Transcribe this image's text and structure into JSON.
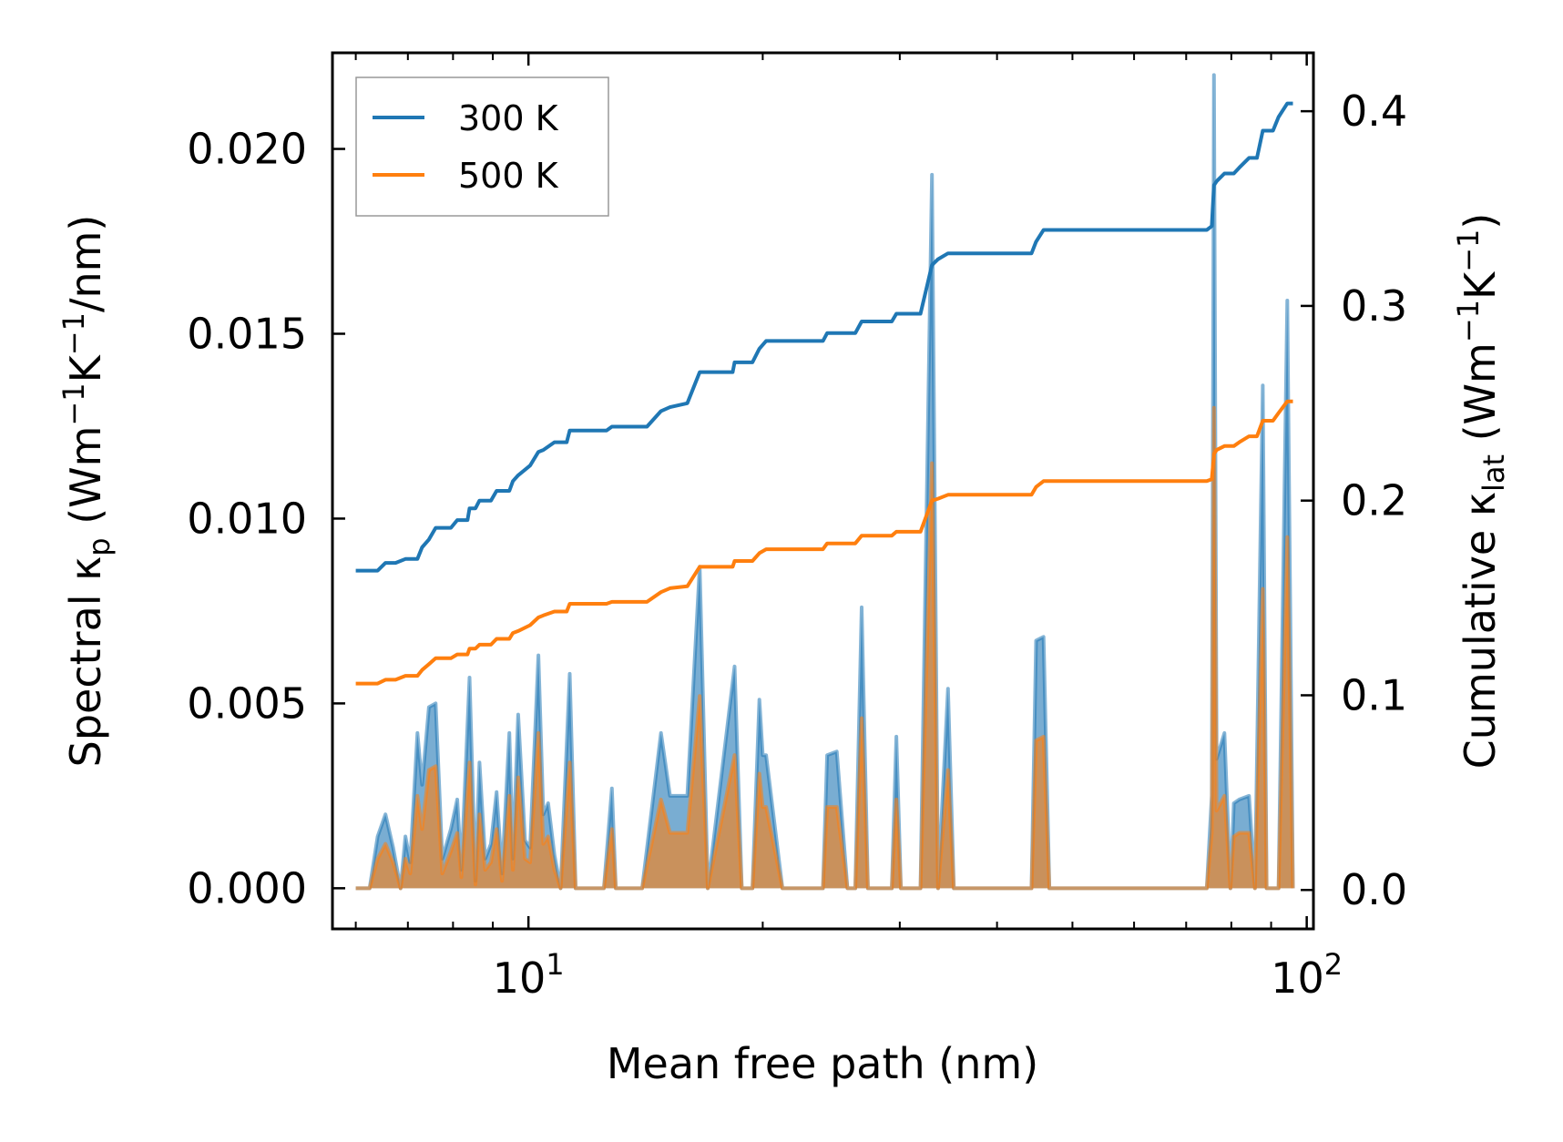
{
  "chart_data": {
    "type": "line",
    "x_scale": "log",
    "xlabel": "Mean free path (nm)",
    "ylabel_left": {
      "prefix": "Spectral κ",
      "sub": "p",
      "unit_open": " (Wm",
      "sup1": "−1",
      "mid": "K",
      "sup2": "−1",
      "tail": "/nm)"
    },
    "ylabel_right": {
      "prefix": "Cumulative κ",
      "sub": "lat",
      "unit_open": " (Wm",
      "sup1": "−1",
      "mid": "K",
      "sup2": "−1",
      "tail": ")"
    },
    "xlim": [
      5.6,
      102
    ],
    "ylim_left": [
      -0.0011,
      0.0226
    ],
    "ylim_right": [
      -0.02,
      0.43
    ],
    "x_ticks": [
      {
        "base": "10",
        "exp": "1",
        "value": 10
      },
      {
        "base": "10",
        "exp": "2",
        "value": 100
      }
    ],
    "y_left_ticks": [
      "0.000",
      "0.005",
      "0.010",
      "0.015",
      "0.020"
    ],
    "y_left_tick_values": [
      0,
      0.005,
      0.01,
      0.015,
      0.02
    ],
    "y_right_ticks": [
      "0.0",
      "0.1",
      "0.2",
      "0.3",
      "0.4"
    ],
    "y_right_tick_values": [
      0,
      0.1,
      0.2,
      0.3,
      0.4
    ],
    "legend": {
      "placement": "top-left",
      "entries": [
        {
          "label": "300 K",
          "color": "#1f77b4"
        },
        {
          "label": "500 K",
          "color": "#ff7f0e"
        }
      ]
    },
    "spectral_series": [
      {
        "name": "300 K",
        "color": "#1f77b4",
        "points": [
          [
            6.0,
            0
          ],
          [
            6.25,
            0
          ],
          [
            6.4,
            0.0014
          ],
          [
            6.55,
            0.002
          ],
          [
            6.7,
            0.0011
          ],
          [
            6.85,
            0
          ],
          [
            6.95,
            0.0014
          ],
          [
            7.05,
            0.0007
          ],
          [
            7.2,
            0.0042
          ],
          [
            7.3,
            0.0028
          ],
          [
            7.45,
            0.0049
          ],
          [
            7.6,
            0.005
          ],
          [
            7.75,
            0.0008
          ],
          [
            7.95,
            0.0016
          ],
          [
            8.1,
            0.0024
          ],
          [
            8.2,
            0.0005
          ],
          [
            8.4,
            0.0057
          ],
          [
            8.55,
            0.0002
          ],
          [
            8.65,
            0.0034
          ],
          [
            8.8,
            0.0008
          ],
          [
            8.95,
            0.0012
          ],
          [
            9.1,
            0.0026
          ],
          [
            9.25,
            0.0004
          ],
          [
            9.45,
            0.0042
          ],
          [
            9.55,
            0.0008
          ],
          [
            9.7,
            0.0047
          ],
          [
            9.9,
            0.0013
          ],
          [
            10.05,
            0.0011
          ],
          [
            10.3,
            0.0063
          ],
          [
            10.45,
            0.002
          ],
          [
            10.6,
            0.0023
          ],
          [
            10.8,
            0.0009
          ],
          [
            11.0,
            0
          ],
          [
            11.3,
            0.0058
          ],
          [
            11.5,
            0
          ],
          [
            12.5,
            0
          ],
          [
            12.8,
            0.0027
          ],
          [
            12.95,
            0
          ],
          [
            14.0,
            0
          ],
          [
            14.8,
            0.0042
          ],
          [
            15.2,
            0.0025
          ],
          [
            16.0,
            0.0025
          ],
          [
            16.6,
            0.0087
          ],
          [
            17.0,
            0
          ],
          [
            18.4,
            0.006
          ],
          [
            18.8,
            0
          ],
          [
            19.4,
            0
          ],
          [
            19.8,
            0.0051
          ],
          [
            20.0,
            0.0036
          ],
          [
            20.2,
            0.0036
          ],
          [
            21.2,
            0
          ],
          [
            23.9,
            0
          ],
          [
            24.2,
            0.0036
          ],
          [
            24.9,
            0.0037
          ],
          [
            25.7,
            0
          ],
          [
            26.3,
            0
          ],
          [
            26.8,
            0.0076
          ],
          [
            27.3,
            0
          ],
          [
            29.3,
            0
          ],
          [
            29.7,
            0.0041
          ],
          [
            30.1,
            0
          ],
          [
            31.9,
            0
          ],
          [
            33.0,
            0.0193
          ],
          [
            33.6,
            0
          ],
          [
            34.6,
            0.0054
          ],
          [
            35.2,
            0
          ],
          [
            44.3,
            0
          ],
          [
            44.9,
            0.0067
          ],
          [
            45.9,
            0.0068
          ],
          [
            46.7,
            0
          ],
          [
            74.4,
            0
          ],
          [
            75.5,
            0.0025
          ],
          [
            76.0,
            0.022
          ],
          [
            76.6,
            0.0035
          ],
          [
            78.4,
            0.0042
          ],
          [
            79.8,
            0
          ],
          [
            80.6,
            0.0023
          ],
          [
            81.9,
            0.0024
          ],
          [
            84.3,
            0.0025
          ],
          [
            85.8,
            0
          ],
          [
            87.8,
            0.0136
          ],
          [
            88.8,
            0
          ],
          [
            92.0,
            0
          ],
          [
            94.4,
            0.0159
          ],
          [
            96.0,
            0
          ]
        ]
      },
      {
        "name": "500 K",
        "color": "#ff7f0e",
        "points": [
          [
            6.0,
            0
          ],
          [
            6.25,
            0
          ],
          [
            6.4,
            0.0008
          ],
          [
            6.55,
            0.0012
          ],
          [
            6.7,
            0.0007
          ],
          [
            6.85,
            0
          ],
          [
            6.95,
            0.0008
          ],
          [
            7.05,
            0.0004
          ],
          [
            7.2,
            0.0025
          ],
          [
            7.3,
            0.0016
          ],
          [
            7.45,
            0.0032
          ],
          [
            7.6,
            0.0033
          ],
          [
            7.75,
            0.0004
          ],
          [
            7.95,
            0.001
          ],
          [
            8.1,
            0.0015
          ],
          [
            8.2,
            0.0003
          ],
          [
            8.4,
            0.0034
          ],
          [
            8.55,
            0.0001
          ],
          [
            8.65,
            0.002
          ],
          [
            8.8,
            0.0005
          ],
          [
            8.95,
            0.0007
          ],
          [
            9.1,
            0.0016
          ],
          [
            9.25,
            0.0002
          ],
          [
            9.45,
            0.0025
          ],
          [
            9.55,
            0.0005
          ],
          [
            9.7,
            0.003
          ],
          [
            9.9,
            0.0008
          ],
          [
            10.05,
            0.0007
          ],
          [
            10.3,
            0.0042
          ],
          [
            10.45,
            0.0012
          ],
          [
            10.6,
            0.0014
          ],
          [
            10.8,
            0.0005
          ],
          [
            11.0,
            0
          ],
          [
            11.3,
            0.0034
          ],
          [
            11.5,
            0
          ],
          [
            12.5,
            0
          ],
          [
            12.8,
            0.0016
          ],
          [
            12.95,
            0
          ],
          [
            14.0,
            0
          ],
          [
            14.8,
            0.0024
          ],
          [
            15.2,
            0.0015
          ],
          [
            16.0,
            0.0015
          ],
          [
            16.6,
            0.0052
          ],
          [
            17.0,
            0
          ],
          [
            18.4,
            0.0036
          ],
          [
            18.8,
            0
          ],
          [
            19.4,
            0
          ],
          [
            19.8,
            0.0031
          ],
          [
            20.0,
            0.0022
          ],
          [
            20.2,
            0.0022
          ],
          [
            21.2,
            0
          ],
          [
            23.9,
            0
          ],
          [
            24.2,
            0.0022
          ],
          [
            24.9,
            0.0022
          ],
          [
            25.7,
            0
          ],
          [
            26.3,
            0
          ],
          [
            26.8,
            0.0046
          ],
          [
            27.3,
            0
          ],
          [
            29.3,
            0
          ],
          [
            29.7,
            0.0024
          ],
          [
            30.1,
            0
          ],
          [
            31.9,
            0
          ],
          [
            33.0,
            0.0115
          ],
          [
            33.6,
            0
          ],
          [
            34.6,
            0.0032
          ],
          [
            35.2,
            0
          ],
          [
            44.3,
            0
          ],
          [
            44.9,
            0.004
          ],
          [
            45.9,
            0.0041
          ],
          [
            46.7,
            0
          ],
          [
            74.4,
            0
          ],
          [
            75.5,
            0.0015
          ],
          [
            76.0,
            0.013
          ],
          [
            76.6,
            0.0021
          ],
          [
            78.4,
            0.0025
          ],
          [
            79.8,
            0
          ],
          [
            80.6,
            0.0014
          ],
          [
            81.9,
            0.0015
          ],
          [
            84.3,
            0.0015
          ],
          [
            85.8,
            0
          ],
          [
            87.8,
            0.0081
          ],
          [
            88.8,
            0
          ],
          [
            92.0,
            0
          ],
          [
            94.4,
            0.0095
          ],
          [
            96.0,
            0
          ]
        ]
      }
    ],
    "cumulative_series": [
      {
        "name": "300 K",
        "color": "#1f77b4",
        "points": [
          [
            6.0,
            0.164
          ],
          [
            6.4,
            0.164
          ],
          [
            6.55,
            0.168
          ],
          [
            6.75,
            0.168
          ],
          [
            6.95,
            0.17
          ],
          [
            7.2,
            0.17
          ],
          [
            7.3,
            0.176
          ],
          [
            7.45,
            0.18
          ],
          [
            7.6,
            0.186
          ],
          [
            7.95,
            0.186
          ],
          [
            8.1,
            0.19
          ],
          [
            8.35,
            0.19
          ],
          [
            8.4,
            0.196
          ],
          [
            8.55,
            0.196
          ],
          [
            8.65,
            0.2
          ],
          [
            8.95,
            0.2
          ],
          [
            9.1,
            0.205
          ],
          [
            9.45,
            0.205
          ],
          [
            9.55,
            0.21
          ],
          [
            9.7,
            0.213
          ],
          [
            10.05,
            0.218
          ],
          [
            10.3,
            0.225
          ],
          [
            10.45,
            0.226
          ],
          [
            10.8,
            0.23
          ],
          [
            11.2,
            0.23
          ],
          [
            11.3,
            0.236
          ],
          [
            12.6,
            0.236
          ],
          [
            12.8,
            0.238
          ],
          [
            14.2,
            0.238
          ],
          [
            14.8,
            0.246
          ],
          [
            15.2,
            0.248
          ],
          [
            16.0,
            0.25
          ],
          [
            16.6,
            0.266
          ],
          [
            18.3,
            0.266
          ],
          [
            18.4,
            0.271
          ],
          [
            19.4,
            0.271
          ],
          [
            19.8,
            0.278
          ],
          [
            20.2,
            0.282
          ],
          [
            23.9,
            0.282
          ],
          [
            24.2,
            0.286
          ],
          [
            26.3,
            0.286
          ],
          [
            26.8,
            0.292
          ],
          [
            29.3,
            0.292
          ],
          [
            29.7,
            0.296
          ],
          [
            31.9,
            0.296
          ],
          [
            33.0,
            0.321
          ],
          [
            33.6,
            0.324
          ],
          [
            34.6,
            0.327
          ],
          [
            44.3,
            0.327
          ],
          [
            44.9,
            0.333
          ],
          [
            45.9,
            0.339
          ],
          [
            74.4,
            0.339
          ],
          [
            75.5,
            0.341
          ],
          [
            76.0,
            0.362
          ],
          [
            76.6,
            0.364
          ],
          [
            78.4,
            0.368
          ],
          [
            80.6,
            0.368
          ],
          [
            81.9,
            0.371
          ],
          [
            84.3,
            0.376
          ],
          [
            86.3,
            0.376
          ],
          [
            87.8,
            0.39
          ],
          [
            90.5,
            0.39
          ],
          [
            92.0,
            0.397
          ],
          [
            94.4,
            0.404
          ],
          [
            96.0,
            0.404
          ]
        ]
      },
      {
        "name": "500 K",
        "color": "#ff7f0e",
        "points": [
          [
            6.0,
            0.106
          ],
          [
            6.4,
            0.106
          ],
          [
            6.55,
            0.108
          ],
          [
            6.75,
            0.108
          ],
          [
            6.95,
            0.11
          ],
          [
            7.2,
            0.11
          ],
          [
            7.3,
            0.113
          ],
          [
            7.45,
            0.116
          ],
          [
            7.6,
            0.119
          ],
          [
            7.95,
            0.119
          ],
          [
            8.1,
            0.121
          ],
          [
            8.35,
            0.121
          ],
          [
            8.4,
            0.124
          ],
          [
            8.55,
            0.124
          ],
          [
            8.65,
            0.126
          ],
          [
            8.95,
            0.126
          ],
          [
            9.1,
            0.129
          ],
          [
            9.45,
            0.129
          ],
          [
            9.55,
            0.132
          ],
          [
            9.7,
            0.133
          ],
          [
            10.05,
            0.136
          ],
          [
            10.3,
            0.14
          ],
          [
            10.45,
            0.141
          ],
          [
            10.8,
            0.143
          ],
          [
            11.2,
            0.143
          ],
          [
            11.3,
            0.147
          ],
          [
            12.6,
            0.147
          ],
          [
            12.8,
            0.148
          ],
          [
            14.2,
            0.148
          ],
          [
            14.8,
            0.153
          ],
          [
            15.2,
            0.155
          ],
          [
            16.0,
            0.156
          ],
          [
            16.6,
            0.166
          ],
          [
            18.3,
            0.166
          ],
          [
            18.4,
            0.169
          ],
          [
            19.4,
            0.169
          ],
          [
            19.8,
            0.173
          ],
          [
            20.2,
            0.175
          ],
          [
            23.9,
            0.175
          ],
          [
            24.2,
            0.178
          ],
          [
            26.3,
            0.178
          ],
          [
            26.8,
            0.182
          ],
          [
            29.3,
            0.182
          ],
          [
            29.7,
            0.184
          ],
          [
            31.9,
            0.184
          ],
          [
            33.0,
            0.2
          ],
          [
            33.6,
            0.201
          ],
          [
            34.6,
            0.203
          ],
          [
            44.3,
            0.203
          ],
          [
            44.9,
            0.207
          ],
          [
            45.9,
            0.21
          ],
          [
            74.4,
            0.21
          ],
          [
            75.5,
            0.211
          ],
          [
            76.0,
            0.224
          ],
          [
            76.6,
            0.226
          ],
          [
            78.4,
            0.228
          ],
          [
            80.6,
            0.228
          ],
          [
            81.9,
            0.23
          ],
          [
            84.3,
            0.233
          ],
          [
            86.3,
            0.233
          ],
          [
            87.8,
            0.241
          ],
          [
            90.5,
            0.241
          ],
          [
            92.0,
            0.245
          ],
          [
            94.4,
            0.251
          ],
          [
            96.0,
            0.251
          ]
        ]
      }
    ]
  }
}
